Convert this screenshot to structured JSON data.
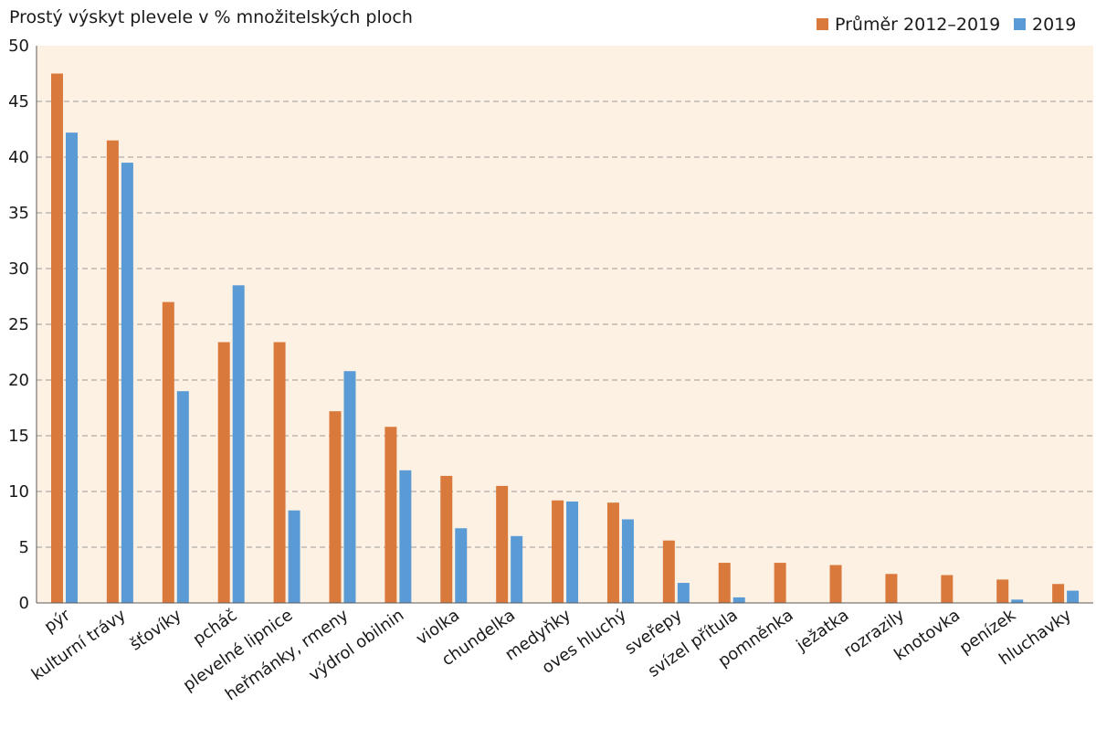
{
  "chart_data": {
    "type": "bar",
    "title": "Prostý výskyt plevele v % množitelských ploch",
    "xlabel": "",
    "ylabel": "",
    "ylim": [
      0,
      50
    ],
    "yticks": [
      0,
      5,
      10,
      15,
      20,
      25,
      30,
      35,
      40,
      45,
      50
    ],
    "grid": true,
    "legend_position": "top-right",
    "plot_background": "#fdf1e4",
    "categories": [
      "pýr",
      "kulturní trávy",
      "šťovíky",
      "pcháč",
      "plevelné lipnice",
      "heřmánky, rmeny",
      "výdrol obilnin",
      "violka",
      "chundelka",
      "medyňky",
      "oves hluchý",
      "sveřepy",
      "svízel přítula",
      "pomněnka",
      "ježatka",
      "rozrazily",
      "knotovka",
      "penízek",
      "hluchavky"
    ],
    "series": [
      {
        "name": "Průměr 2012–2019",
        "color": "#d97a3c",
        "values": [
          47.5,
          41.5,
          27.0,
          23.4,
          23.4,
          17.2,
          15.8,
          11.4,
          10.5,
          9.2,
          9.0,
          5.6,
          3.6,
          3.6,
          3.4,
          2.6,
          2.5,
          2.1,
          1.7
        ]
      },
      {
        "name": "2019",
        "color": "#5b9bd5",
        "values": [
          42.2,
          39.5,
          19.0,
          28.5,
          8.3,
          20.8,
          11.9,
          6.7,
          6.0,
          9.1,
          7.5,
          1.8,
          0.5,
          0.0,
          0.0,
          0.0,
          0.0,
          0.3,
          1.1
        ]
      }
    ]
  }
}
